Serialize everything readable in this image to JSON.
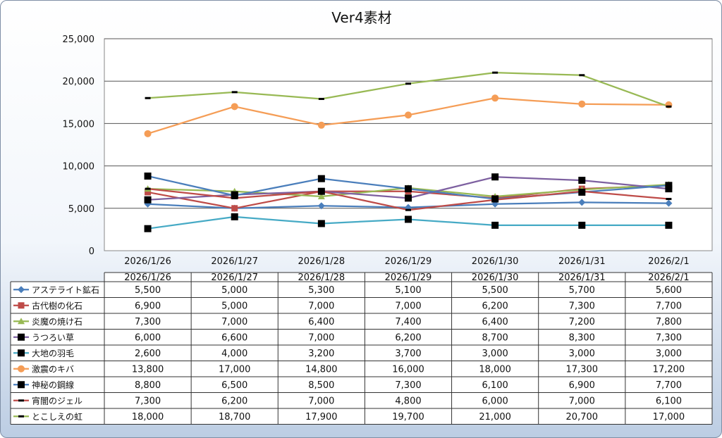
{
  "chart_data": {
    "type": "line",
    "title": "Ver4素材",
    "categories": [
      "2026/1/26",
      "2026/1/27",
      "2026/1/28",
      "2026/1/29",
      "2026/1/30",
      "2026/1/31",
      "2026/2/1"
    ],
    "ylim": [
      0,
      25000
    ],
    "yticks": [
      "0",
      "5,000",
      "10,000",
      "15,000",
      "20,000",
      "25,000"
    ],
    "grid": true,
    "legend": "data-table",
    "series": [
      {
        "name": "アステライト鉱石",
        "color": "#4a7ebb",
        "marker": "diamond",
        "values": [
          5500,
          5000,
          5300,
          5100,
          5500,
          5700,
          5600
        ],
        "labels": [
          "5,500",
          "5,000",
          "5,300",
          "5,100",
          "5,500",
          "5,700",
          "5,600"
        ]
      },
      {
        "name": "古代樹の化石",
        "color": "#be4b48",
        "marker": "square-color",
        "values": [
          6900,
          5000,
          7000,
          7000,
          6200,
          7300,
          7700
        ],
        "labels": [
          "6,900",
          "5,000",
          "7,000",
          "7,000",
          "6,200",
          "7,300",
          "7,700"
        ]
      },
      {
        "name": "炎魔の焼け石",
        "color": "#98b954",
        "marker": "triangle",
        "values": [
          7300,
          7000,
          6400,
          7400,
          6400,
          7200,
          7800
        ],
        "labels": [
          "7,300",
          "7,000",
          "6,400",
          "7,400",
          "6,400",
          "7,200",
          "7,800"
        ]
      },
      {
        "name": "うつろい草",
        "color": "#7d60a0",
        "marker": "square-black",
        "values": [
          6000,
          6600,
          7000,
          6200,
          8700,
          8300,
          7300
        ],
        "labels": [
          "6,000",
          "6,600",
          "7,000",
          "6,200",
          "8,700",
          "8,300",
          "7,300"
        ]
      },
      {
        "name": "大地の羽毛",
        "color": "#46aac5",
        "marker": "square-black",
        "values": [
          2600,
          4000,
          3200,
          3700,
          3000,
          3000,
          3000
        ],
        "labels": [
          "2,600",
          "4,000",
          "3,200",
          "3,700",
          "3,000",
          "3,000",
          "3,000"
        ]
      },
      {
        "name": "激震のキバ",
        "color": "#f59d56",
        "marker": "circle",
        "values": [
          13800,
          17000,
          14800,
          16000,
          18000,
          17300,
          17200
        ],
        "labels": [
          "13,800",
          "17,000",
          "14,800",
          "16,000",
          "18,000",
          "17,300",
          "17,200"
        ]
      },
      {
        "name": "神秘の鋼線",
        "color": "#4a7ebb",
        "marker": "square-black",
        "values": [
          8800,
          6500,
          8500,
          7300,
          6100,
          6900,
          7700
        ],
        "labels": [
          "8,800",
          "6,500",
          "8,500",
          "7,300",
          "6,100",
          "6,900",
          "7,700"
        ]
      },
      {
        "name": "宵闇のジェル",
        "color": "#be4b48",
        "marker": "dash",
        "values": [
          7300,
          6200,
          7000,
          4800,
          6000,
          7000,
          6100
        ],
        "labels": [
          "7,300",
          "6,200",
          "7,000",
          "4,800",
          "6,000",
          "7,000",
          "6,100"
        ]
      },
      {
        "name": "とこしえの虹",
        "color": "#98b954",
        "marker": "dash",
        "values": [
          18000,
          18700,
          17900,
          19700,
          21000,
          20700,
          17000
        ],
        "labels": [
          "18,000",
          "18,700",
          "17,900",
          "19,700",
          "21,000",
          "20,700",
          "17,000"
        ]
      }
    ]
  }
}
